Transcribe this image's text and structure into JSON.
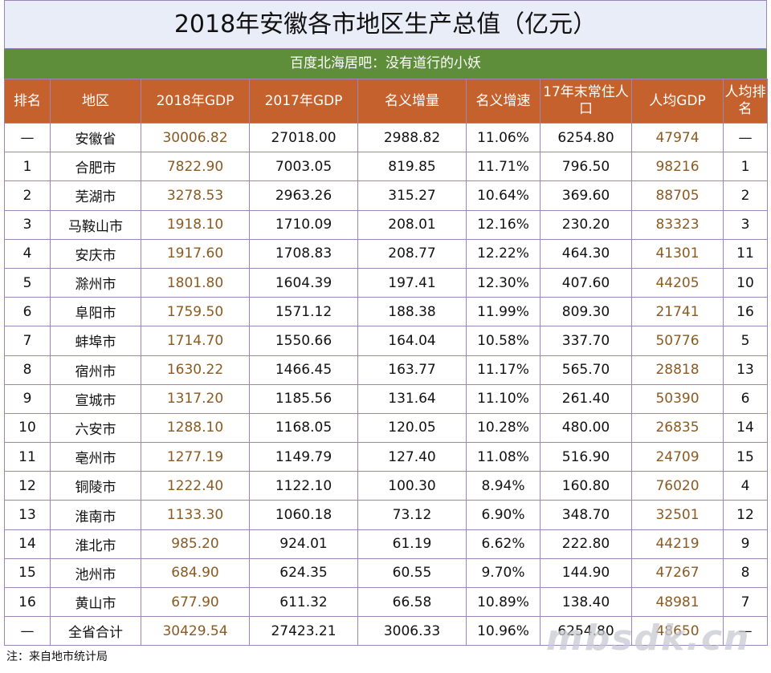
{
  "header": {
    "title": "2018年安徽各市地区生产总值（亿元）",
    "subtitle": "百度北海居吧：没有道行的小妖"
  },
  "table": {
    "headers": [
      "排名",
      "地区",
      "2018年GDP",
      "2017年GDP",
      "名义增量",
      "名义增速",
      "17年末常住人口",
      "人均GDP",
      "人均排名"
    ],
    "rows": [
      [
        "—",
        "安徽省",
        "30006.82",
        "27018.00",
        "2988.82",
        "11.06%",
        "6254.80",
        "47974",
        "—"
      ],
      [
        "1",
        "合肥市",
        "7822.90",
        "7003.05",
        "819.85",
        "11.71%",
        "796.50",
        "98216",
        "1"
      ],
      [
        "2",
        "芜湖市",
        "3278.53",
        "2963.26",
        "315.27",
        "10.64%",
        "369.60",
        "88705",
        "2"
      ],
      [
        "3",
        "马鞍山市",
        "1918.10",
        "1710.09",
        "208.01",
        "12.16%",
        "230.20",
        "83323",
        "3"
      ],
      [
        "4",
        "安庆市",
        "1917.60",
        "1708.83",
        "208.77",
        "12.22%",
        "464.30",
        "41301",
        "11"
      ],
      [
        "5",
        "滁州市",
        "1801.80",
        "1604.39",
        "197.41",
        "12.30%",
        "407.60",
        "44205",
        "10"
      ],
      [
        "6",
        "阜阳市",
        "1759.50",
        "1571.12",
        "188.38",
        "11.99%",
        "809.30",
        "21741",
        "16"
      ],
      [
        "7",
        "蚌埠市",
        "1714.70",
        "1550.66",
        "164.04",
        "10.58%",
        "337.70",
        "50776",
        "5"
      ],
      [
        "8",
        "宿州市",
        "1630.22",
        "1466.45",
        "163.77",
        "11.17%",
        "565.70",
        "28818",
        "13"
      ],
      [
        "9",
        "宣城市",
        "1317.20",
        "1185.56",
        "131.64",
        "11.10%",
        "261.40",
        "50390",
        "6"
      ],
      [
        "10",
        "六安市",
        "1288.10",
        "1168.05",
        "120.05",
        "10.28%",
        "480.00",
        "26835",
        "14"
      ],
      [
        "11",
        "亳州市",
        "1277.19",
        "1149.79",
        "127.40",
        "11.08%",
        "516.90",
        "24709",
        "15"
      ],
      [
        "12",
        "铜陵市",
        "1222.40",
        "1122.10",
        "100.30",
        "8.94%",
        "160.80",
        "76020",
        "4"
      ],
      [
        "13",
        "淮南市",
        "1133.30",
        "1060.18",
        "73.12",
        "6.90%",
        "348.70",
        "32501",
        "12"
      ],
      [
        "14",
        "淮北市",
        "985.20",
        "924.01",
        "61.19",
        "6.62%",
        "222.80",
        "44219",
        "9"
      ],
      [
        "15",
        "池州市",
        "684.90",
        "624.35",
        "60.55",
        "9.70%",
        "144.90",
        "47267",
        "8"
      ],
      [
        "16",
        "黄山市",
        "677.90",
        "611.32",
        "66.58",
        "10.89%",
        "138.40",
        "48981",
        "7"
      ],
      [
        "—",
        "全省合计",
        "30429.54",
        "27423.21",
        "3006.33",
        "10.96%",
        "6254.80",
        "48650",
        "—"
      ]
    ]
  },
  "footer": {
    "note": "注：来自地市统计局",
    "watermark": "mbsdk.cn"
  }
}
